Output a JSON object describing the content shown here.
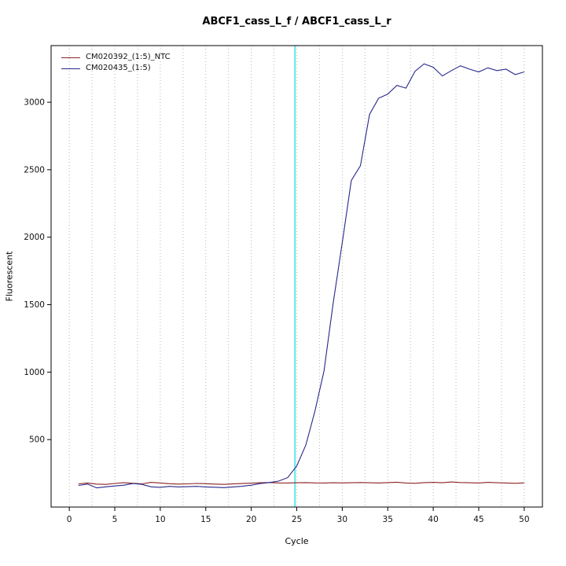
{
  "chart_data": {
    "type": "line",
    "title": "ABCF1_cass_L_f / ABCF1_cass_L_r",
    "xlabel": "Cycle",
    "ylabel": "Fluorescent",
    "xlim": [
      -2,
      52
    ],
    "ylim": [
      0,
      3420
    ],
    "x_ticks": [
      0,
      5,
      10,
      15,
      20,
      25,
      30,
      35,
      40,
      45,
      50
    ],
    "y_ticks": [
      500,
      1000,
      1500,
      2000,
      2500,
      3000
    ],
    "grid": {
      "vertical_step": 2.5,
      "style": "dotted",
      "color": "#b5b5b5"
    },
    "legend_position": "top-left",
    "threshold_line": {
      "x": 24.8,
      "color": "#00dddd"
    },
    "x": [
      1,
      2,
      3,
      4,
      5,
      6,
      7,
      8,
      9,
      10,
      11,
      12,
      13,
      14,
      15,
      16,
      17,
      18,
      19,
      20,
      21,
      22,
      23,
      24,
      25,
      26,
      27,
      28,
      29,
      30,
      31,
      32,
      33,
      34,
      35,
      36,
      37,
      38,
      39,
      40,
      41,
      42,
      43,
      44,
      45,
      46,
      47,
      48,
      49,
      50
    ],
    "series": [
      {
        "name": "CM020392_(1:5)_NTC",
        "color": "#8b2323",
        "values": [
          172,
          178,
          170,
          168,
          175,
          180,
          176,
          172,
          183,
          178,
          173,
          170,
          172,
          175,
          173,
          170,
          168,
          171,
          174,
          177,
          180,
          182,
          179,
          178,
          180,
          181,
          179,
          178,
          180,
          179,
          180,
          182,
          180,
          178,
          181,
          184,
          178,
          176,
          181,
          183,
          180,
          186,
          182,
          180,
          178,
          183,
          180,
          178,
          176,
          179
        ]
      },
      {
        "name": "CM020435_(1:5)",
        "color": "#27278b",
        "values": [
          160,
          170,
          142,
          150,
          156,
          162,
          174,
          168,
          150,
          146,
          153,
          149,
          151,
          153,
          149,
          147,
          144,
          149,
          154,
          162,
          174,
          182,
          192,
          218,
          305,
          460,
          710,
          1010,
          1510,
          1960,
          2420,
          2530,
          2910,
          3030,
          3060,
          3125,
          3105,
          3230,
          3285,
          3260,
          3195,
          3235,
          3270,
          3245,
          3225,
          3255,
          3235,
          3245,
          3205,
          3225
        ]
      }
    ]
  }
}
